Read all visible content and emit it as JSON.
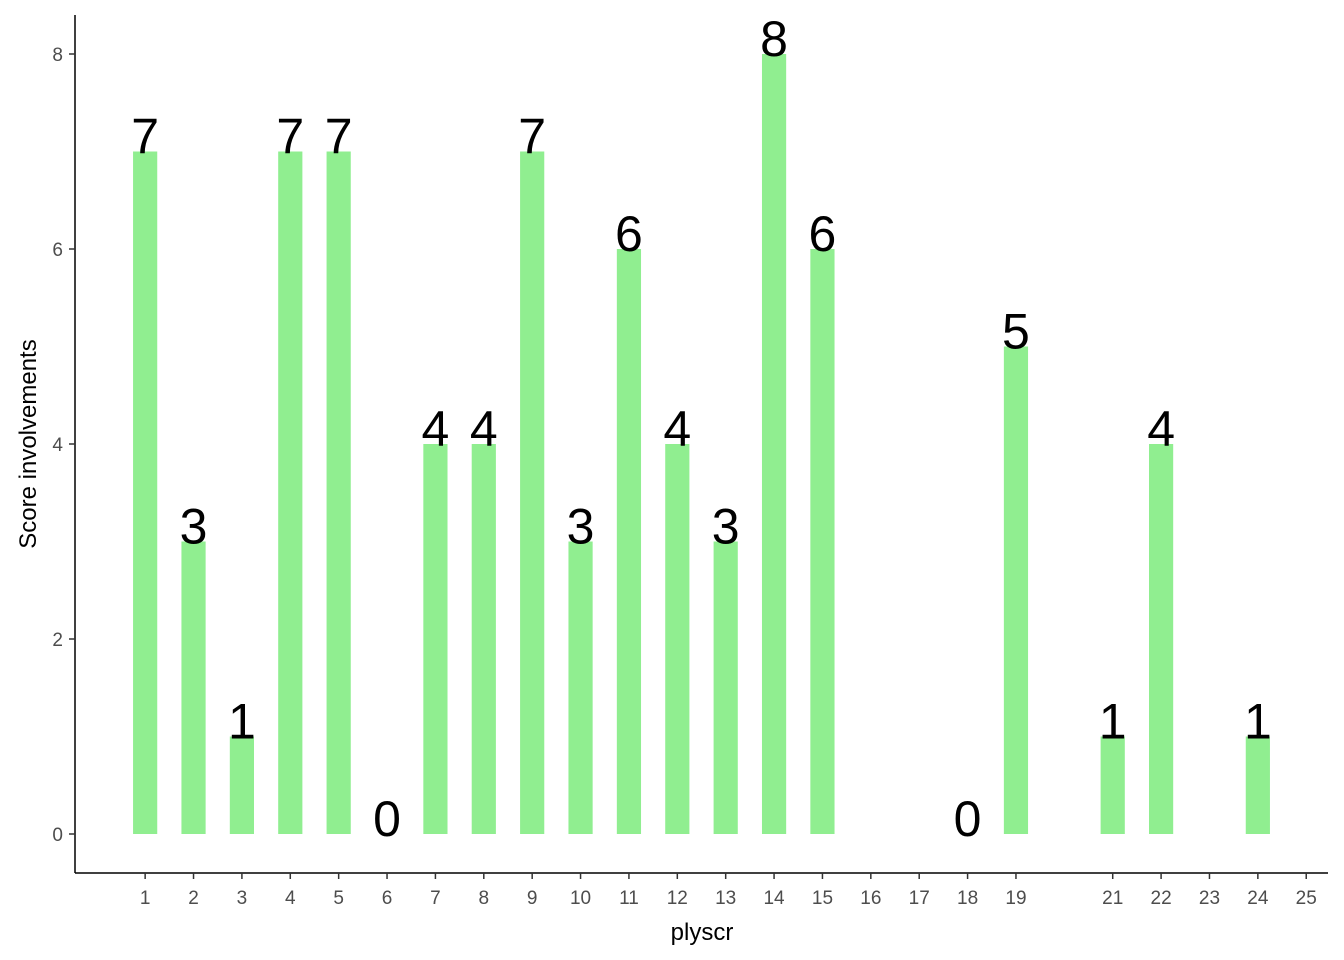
{
  "chart_data": {
    "type": "bar",
    "x_label": "plyscr",
    "y_label": "Score involvements",
    "x": [
      1,
      2,
      3,
      4,
      5,
      6,
      7,
      8,
      9,
      10,
      11,
      12,
      13,
      14,
      15,
      18,
      19,
      21,
      22,
      24
    ],
    "values": [
      7,
      3,
      1,
      7,
      7,
      0,
      4,
      4,
      7,
      3,
      6,
      4,
      3,
      8,
      6,
      0,
      5,
      1,
      4,
      1
    ],
    "color": "#90ee90",
    "xlim": [
      -0.45,
      25.45
    ],
    "xticks": [
      1,
      2,
      3,
      4,
      5,
      6,
      7,
      8,
      9,
      10,
      11,
      12,
      13,
      14,
      15,
      16,
      17,
      18,
      19,
      21,
      22,
      23,
      24,
      25
    ],
    "ylim": [
      -0.4,
      8.4
    ],
    "yticks": [
      0,
      2,
      4,
      6,
      8
    ],
    "grid": false
  }
}
